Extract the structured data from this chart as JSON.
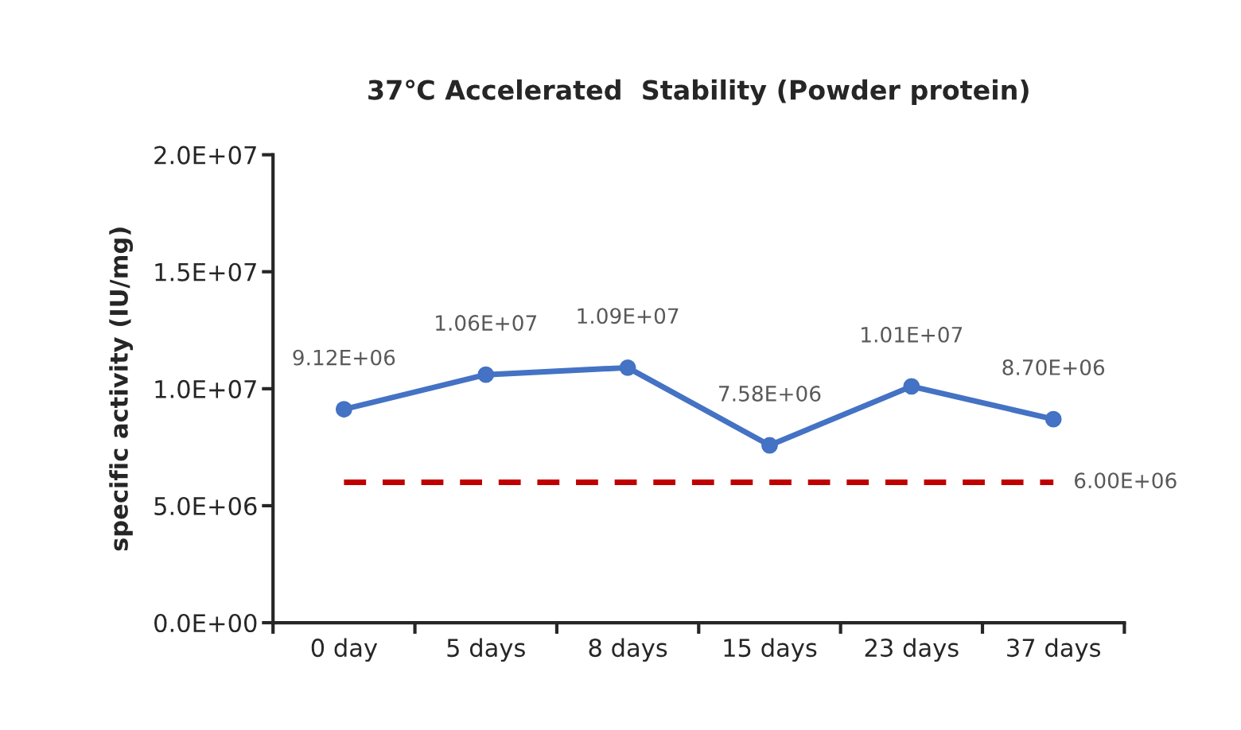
{
  "chart_data": {
    "type": "line",
    "title": "37℃ Accelerated  Stability (Powder protein)",
    "ylabel": "specific activity (IU/mg)",
    "categories": [
      "0 day",
      "5 days",
      "8 days",
      "15 days",
      "23 days",
      "37 days"
    ],
    "series": [
      {
        "color": "#4472c4",
        "marker": "circle",
        "line_style": "solid",
        "values": [
          9120000,
          10600000,
          10900000,
          7580000,
          10100000,
          8700000
        ],
        "value_labels": [
          "9.12E+06",
          "1.06E+07",
          "1.09E+07",
          "7.58E+06",
          "1.01E+07",
          "8.70E+06"
        ]
      },
      {
        "color": "#c00000",
        "marker": "none",
        "line_style": "dashed",
        "values": [
          6000000,
          6000000,
          6000000,
          6000000,
          6000000,
          6000000
        ],
        "value_labels": [
          null,
          null,
          null,
          null,
          null,
          "6.00E+06"
        ]
      }
    ],
    "ylim": [
      0,
      20000000
    ],
    "yticks": [
      {
        "value": 0,
        "label": "0.0E+00"
      },
      {
        "value": 5000000,
        "label": "5.0E+06"
      },
      {
        "value": 10000000,
        "label": "1.0E+07"
      },
      {
        "value": 15000000,
        "label": "1.5E+07"
      },
      {
        "value": 20000000,
        "label": "2.0E+07"
      }
    ],
    "grid": false,
    "legend": false
  }
}
